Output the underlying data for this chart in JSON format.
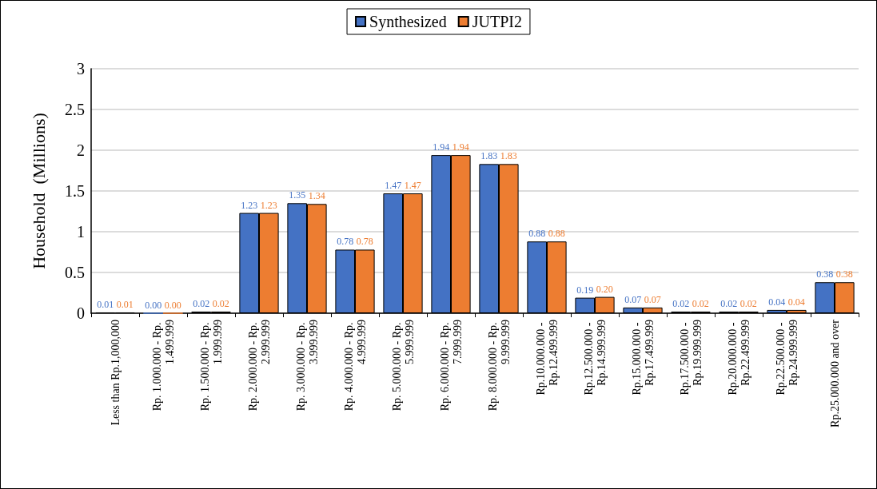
{
  "chart_data": {
    "type": "bar",
    "ylabel": "Household  (Millions)",
    "categories": [
      "Less than Rp.1,000,000",
      "Rp. 1.000.000 - Rp. 1.499.999",
      "Rp. 1.500.000 - Rp. 1.999.999",
      "Rp. 2.000.000 - Rp. 2.999.999",
      "Rp. 3.000.000 - Rp. 3.999.999",
      "Rp. 4.000.000 - Rp. 4.999.999",
      "Rp. 5.000.000 - Rp. 5.999.999",
      "Rp. 6.000.000 - Rp. 7.999.999",
      "Rp. 8.000.000 - Rp. 9.999.999",
      "Rp.10.000.000 - Rp.12.499.999",
      "Rp.12.500.000 - Rp.14.999.999",
      "Rp.15.000.000 - Rp.17.499.999",
      "Rp.17.500.000 - Rp.19.999.999",
      "Rp.20.000.000 - Rp.22.499.999",
      "Rp.22.500.000 - Rp.24.999.999",
      "Rp.25.000.000 and over"
    ],
    "series": [
      {
        "name": "Synthesized",
        "color": "#4472c4",
        "values": [
          0.01,
          0,
          0.02,
          1.23,
          1.35,
          0.78,
          1.47,
          1.94,
          1.83,
          0.88,
          0.19,
          0.07,
          0.02,
          0.02,
          0.04,
          0.38
        ],
        "value_labels": [
          "0.01",
          "0.00",
          "0.02",
          "1.23",
          "1.35",
          "0.78",
          "1.47",
          "1.94",
          "1.83",
          "0.88",
          "0.19",
          "0.07",
          "0.02",
          "0.02",
          "0.04",
          "0.38"
        ]
      },
      {
        "name": "JUTPI2",
        "color": "#ed7d31",
        "values": [
          0.01,
          0,
          0.02,
          1.23,
          1.34,
          0.78,
          1.47,
          1.94,
          1.83,
          0.88,
          0.2,
          0.07,
          0.02,
          0.02,
          0.04,
          0.38
        ],
        "value_labels": [
          "0.01",
          "0.00",
          "0.02",
          "1.23",
          "1.34",
          "0.78",
          "1.47",
          "1.94",
          "1.83",
          "0.88",
          "0.20",
          "0.07",
          "0.02",
          "0.02",
          "0.04",
          "0.38"
        ]
      }
    ],
    "ylim": [
      0,
      3
    ],
    "yticks": [
      0,
      0.5,
      1,
      1.5,
      2,
      2.5,
      3
    ],
    "grid": "y",
    "legend": "top"
  }
}
